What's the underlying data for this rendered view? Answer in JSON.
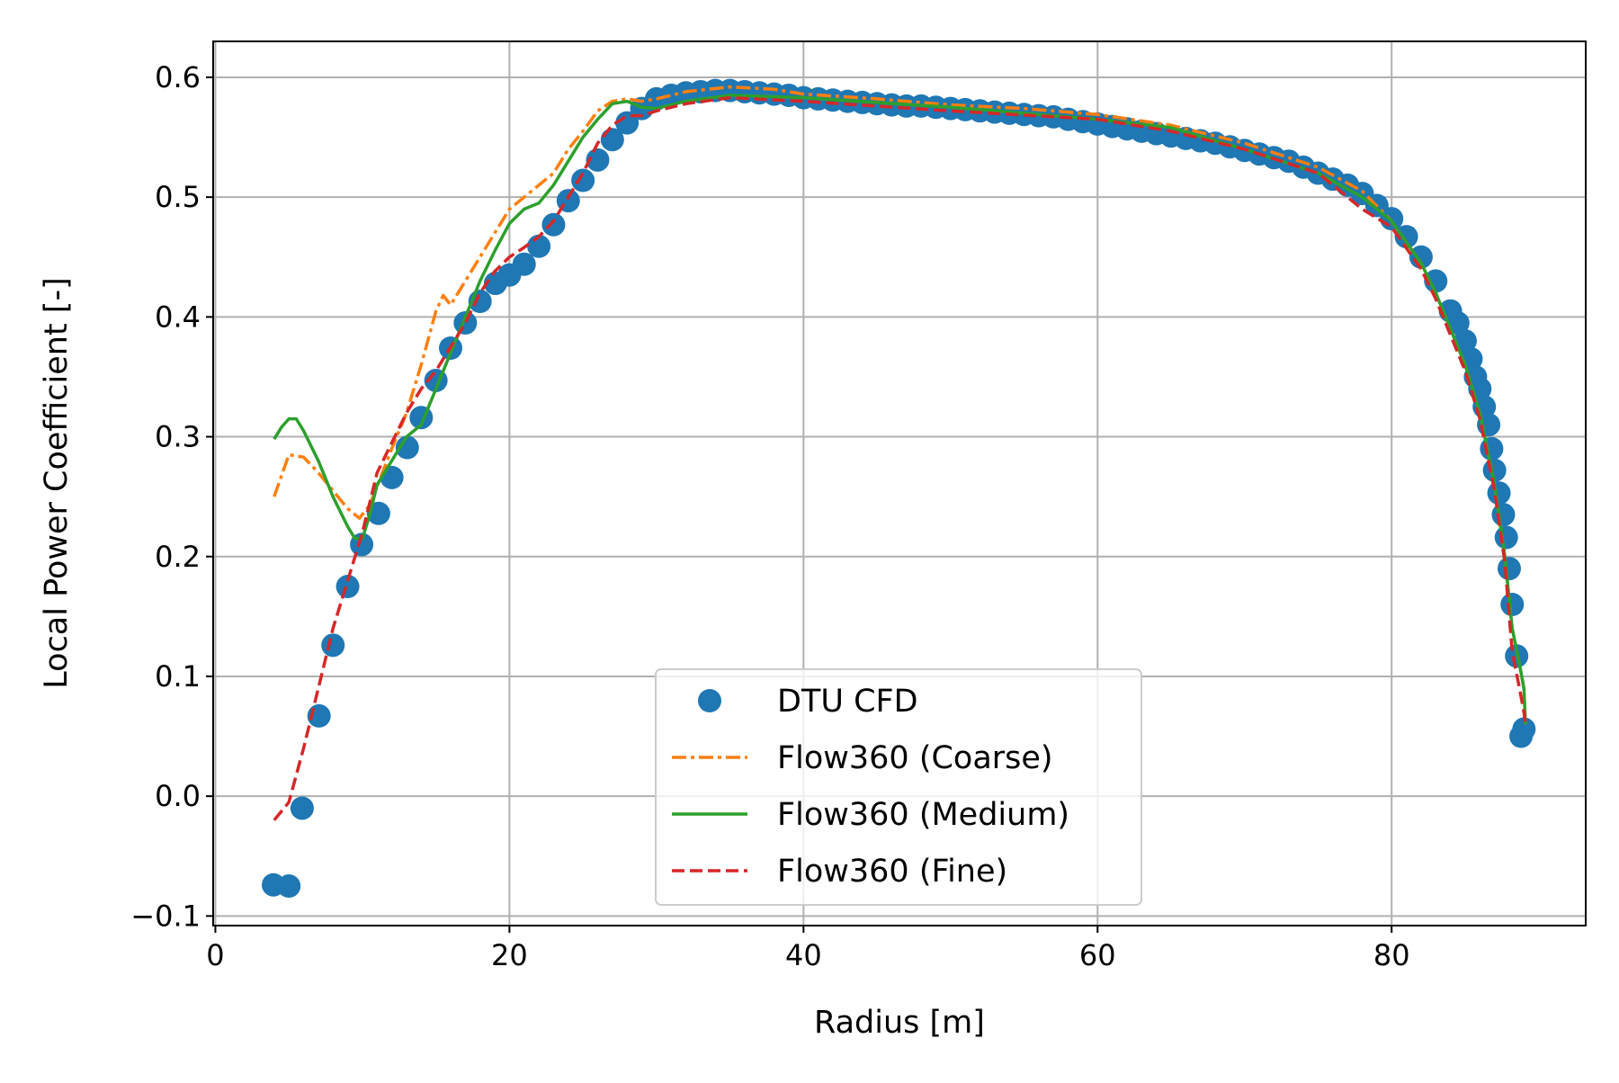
{
  "chart_data": {
    "type": "line",
    "title": "",
    "xlabel": "Radius [m]",
    "ylabel": "Local Power Coefficient [-]",
    "xlim": [
      -0.15,
      93.2
    ],
    "ylim": [
      -0.108,
      0.63
    ],
    "xticks": [
      0,
      20,
      40,
      60,
      80
    ],
    "xtick_labels": [
      "0",
      "20",
      "40",
      "60",
      "80"
    ],
    "yticks": [
      -0.1,
      0.0,
      0.1,
      0.2,
      0.3,
      0.4,
      0.5,
      0.6
    ],
    "ytick_labels": [
      "−0.1",
      "0.0",
      "0.1",
      "0.2",
      "0.3",
      "0.4",
      "0.5",
      "0.6"
    ],
    "grid": true,
    "legend_position": "lower-center",
    "series": [
      {
        "name": "DTU CFD",
        "style": "markers",
        "color": "#1f77b4",
        "x": [
          3.95,
          5,
          5.9,
          7.05,
          8,
          9,
          9.95,
          11.1,
          12,
          13.05,
          14,
          15,
          16,
          17,
          18,
          19.05,
          20,
          21,
          22,
          23,
          24,
          25,
          26,
          27,
          28,
          29,
          30,
          31,
          32,
          33,
          34,
          35,
          36,
          37,
          38,
          39,
          40,
          41,
          42,
          43,
          44,
          45,
          46,
          47,
          48,
          49,
          50,
          51,
          52,
          53,
          54,
          55,
          56,
          57,
          58,
          59,
          60,
          61,
          62,
          63,
          64,
          65,
          66,
          67,
          68,
          69,
          70,
          71,
          72,
          73,
          74,
          75,
          76,
          77,
          78,
          79,
          80,
          81,
          82,
          83,
          84,
          84.5,
          85,
          85.4,
          85.7,
          86,
          86.3,
          86.6,
          86.8,
          87,
          87.3,
          87.6,
          87.8,
          88,
          88.2,
          88.5,
          88.8,
          89
        ],
        "y": [
          -0.074,
          -0.075,
          -0.01,
          0.067,
          0.126,
          0.175,
          0.21,
          0.236,
          0.266,
          0.291,
          0.316,
          0.347,
          0.374,
          0.395,
          0.413,
          0.428,
          0.435,
          0.444,
          0.459,
          0.477,
          0.497,
          0.514,
          0.531,
          0.548,
          0.562,
          0.574,
          0.582,
          0.585,
          0.587,
          0.588,
          0.589,
          0.589,
          0.588,
          0.587,
          0.586,
          0.585,
          0.583,
          0.582,
          0.581,
          0.58,
          0.579,
          0.578,
          0.577,
          0.576,
          0.576,
          0.575,
          0.574,
          0.573,
          0.572,
          0.571,
          0.57,
          0.569,
          0.568,
          0.567,
          0.565,
          0.563,
          0.561,
          0.559,
          0.557,
          0.555,
          0.553,
          0.551,
          0.549,
          0.547,
          0.545,
          0.542,
          0.539,
          0.536,
          0.533,
          0.53,
          0.525,
          0.52,
          0.515,
          0.51,
          0.503,
          0.493,
          0.482,
          0.467,
          0.45,
          0.43,
          0.405,
          0.395,
          0.38,
          0.365,
          0.35,
          0.34,
          0.325,
          0.31,
          0.29,
          0.272,
          0.253,
          0.235,
          0.216,
          0.19,
          0.16,
          0.117,
          0.05,
          0.056
        ]
      },
      {
        "name": "Flow360 (Coarse)",
        "style": "dashdot",
        "color": "#ff7f0e",
        "x": [
          4,
          5,
          6,
          7,
          8,
          9,
          9.8,
          10.5,
          12,
          13,
          14,
          15,
          15.5,
          16,
          17,
          18,
          19,
          20,
          21,
          22,
          23,
          24,
          25,
          26,
          27,
          28,
          29,
          30,
          32,
          35,
          38,
          40,
          45,
          50,
          55,
          60,
          65,
          70,
          75,
          78,
          80,
          82,
          83,
          84,
          85,
          86,
          87,
          87.7,
          88.2,
          88.7,
          89,
          89.1
        ],
        "y": [
          0.25,
          0.285,
          0.283,
          0.27,
          0.255,
          0.24,
          0.232,
          0.243,
          0.29,
          0.32,
          0.36,
          0.405,
          0.418,
          0.41,
          0.43,
          0.45,
          0.47,
          0.49,
          0.5,
          0.51,
          0.52,
          0.54,
          0.555,
          0.572,
          0.58,
          0.582,
          0.58,
          0.582,
          0.588,
          0.592,
          0.59,
          0.586,
          0.582,
          0.577,
          0.574,
          0.569,
          0.56,
          0.545,
          0.525,
          0.505,
          0.48,
          0.445,
          0.42,
          0.39,
          0.36,
          0.32,
          0.26,
          0.2,
          0.14,
          0.11,
          0.09,
          0.06
        ]
      },
      {
        "name": "Flow360 (Medium)",
        "style": "solid",
        "color": "#2ca02c",
        "x": [
          4,
          4.5,
          5,
          5.5,
          6,
          7,
          8,
          9,
          9.5,
          10,
          10.5,
          11,
          12,
          13,
          14,
          15,
          16,
          17,
          18,
          19,
          20,
          21,
          22,
          23,
          24,
          25,
          26,
          27,
          28,
          29,
          30,
          32,
          35,
          40,
          50,
          60,
          65,
          70,
          75,
          78,
          80,
          82,
          83,
          84,
          85,
          86,
          87,
          87.7,
          88.2,
          88.7,
          89,
          89.1
        ],
        "y": [
          0.298,
          0.308,
          0.315,
          0.315,
          0.305,
          0.28,
          0.25,
          0.225,
          0.215,
          0.215,
          0.235,
          0.26,
          0.28,
          0.3,
          0.31,
          0.34,
          0.37,
          0.4,
          0.43,
          0.455,
          0.478,
          0.49,
          0.495,
          0.51,
          0.53,
          0.55,
          0.565,
          0.578,
          0.58,
          0.575,
          0.574,
          0.58,
          0.585,
          0.583,
          0.575,
          0.565,
          0.558,
          0.54,
          0.52,
          0.5,
          0.48,
          0.445,
          0.42,
          0.39,
          0.36,
          0.32,
          0.26,
          0.2,
          0.14,
          0.11,
          0.09,
          0.06
        ]
      },
      {
        "name": "Flow360 (Fine)",
        "style": "dashed",
        "color": "#d62728",
        "x": [
          4,
          5,
          6,
          7,
          8,
          9,
          10,
          11,
          12,
          13,
          14,
          15,
          16,
          17,
          18,
          19,
          20,
          21,
          22,
          23,
          24,
          25,
          26,
          27,
          28,
          29,
          30,
          32,
          35,
          40,
          50,
          60,
          65,
          70,
          75,
          78,
          80,
          82,
          83,
          84,
          85,
          86,
          87,
          87.7,
          88.2,
          88.7,
          89,
          89.1
        ],
        "y": [
          -0.02,
          -0.005,
          0.04,
          0.09,
          0.14,
          0.18,
          0.22,
          0.27,
          0.295,
          0.32,
          0.34,
          0.355,
          0.375,
          0.395,
          0.42,
          0.438,
          0.45,
          0.458,
          0.467,
          0.48,
          0.5,
          0.52,
          0.545,
          0.56,
          0.568,
          0.568,
          0.572,
          0.578,
          0.583,
          0.58,
          0.572,
          0.565,
          0.555,
          0.54,
          0.52,
          0.49,
          0.475,
          0.44,
          0.415,
          0.385,
          0.355,
          0.315,
          0.255,
          0.195,
          0.12,
          0.09,
          0.07,
          0.06
        ]
      }
    ]
  }
}
